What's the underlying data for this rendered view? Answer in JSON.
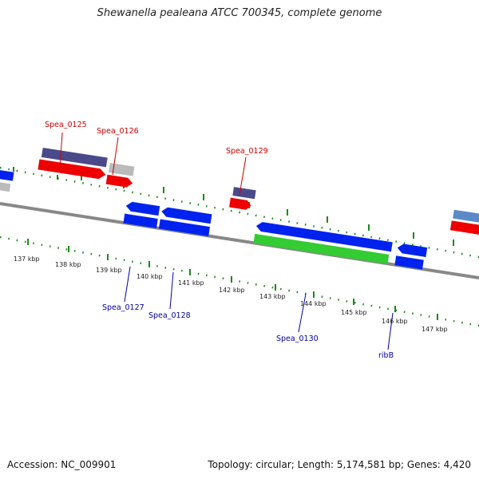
{
  "title": "Shewanella pealeana ATCC 700345, complete genome",
  "footer": {
    "accession": "Accession: NC_009901",
    "summary": "Topology: circular; Length: 5,174,581 bp; Genes: 4,420"
  },
  "colors": {
    "backbone": "#888888",
    "tick": "#1a8a1a",
    "forward_label": "#cc0000",
    "reverse_label": "#0000aa",
    "gene_red": "#ee0000",
    "gene_blue": "#0022ee",
    "gene_navy": "#4a4a8a",
    "gene_gray": "#bbbbbb",
    "gene_green": "#33cc33",
    "gene_steel": "#5a8ac8"
  },
  "kbp_labels": [
    "137 kbp",
    "138 kbp",
    "139 kbp",
    "140 kbp",
    "141 kbp",
    "142 kbp",
    "143 kbp",
    "144 kbp",
    "145 kbp",
    "146 kbp",
    "147 kbp"
  ],
  "forward_gene_labels": [
    "Spea_0125",
    "Spea_0126",
    "Spea_0129"
  ],
  "reverse_gene_labels": [
    "Spea_0127",
    "Spea_0128",
    "Spea_0130",
    "ribB"
  ]
}
